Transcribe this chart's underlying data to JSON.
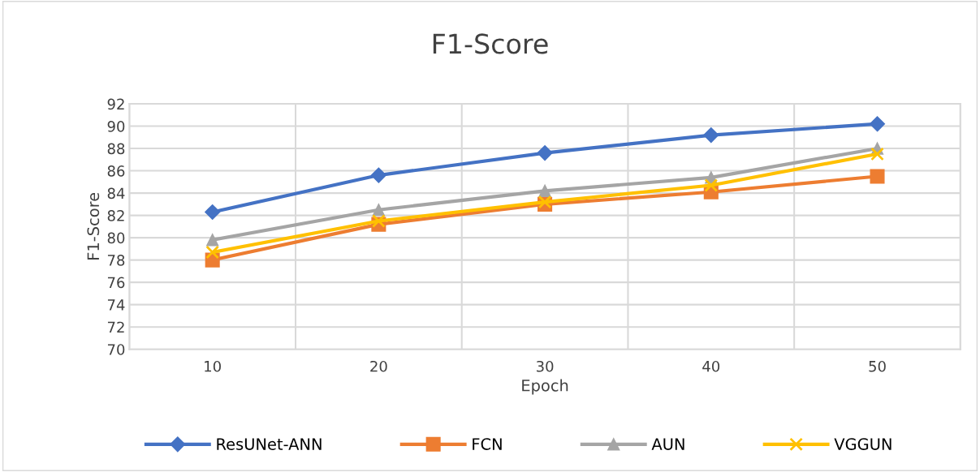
{
  "chart_data": {
    "type": "line",
    "title": "F1-Score",
    "xlabel": "Epoch",
    "ylabel": "F1-Score",
    "categories": [
      "10",
      "20",
      "30",
      "40",
      "50"
    ],
    "series": [
      {
        "name": "ResUNet-ANN",
        "color": "#4472c4",
        "marker": "diamond",
        "values": [
          82.3,
          85.6,
          87.6,
          89.2,
          90.2
        ]
      },
      {
        "name": "FCN",
        "color": "#ed7d31",
        "marker": "square",
        "values": [
          78.0,
          81.2,
          83.0,
          84.1,
          85.5
        ]
      },
      {
        "name": "AUN",
        "color": "#a5a5a5",
        "marker": "triangle",
        "values": [
          79.8,
          82.5,
          84.2,
          85.4,
          88.0
        ]
      },
      {
        "name": "VGGUN",
        "color": "#ffc000",
        "marker": "cross",
        "values": [
          78.7,
          81.5,
          83.2,
          84.7,
          87.5
        ]
      }
    ],
    "ylim": [
      70,
      92
    ],
    "yticks": [
      70,
      72,
      74,
      76,
      78,
      80,
      82,
      84,
      86,
      88,
      90,
      92
    ],
    "grid": true,
    "legend": "bottom",
    "line_style": "solid"
  }
}
